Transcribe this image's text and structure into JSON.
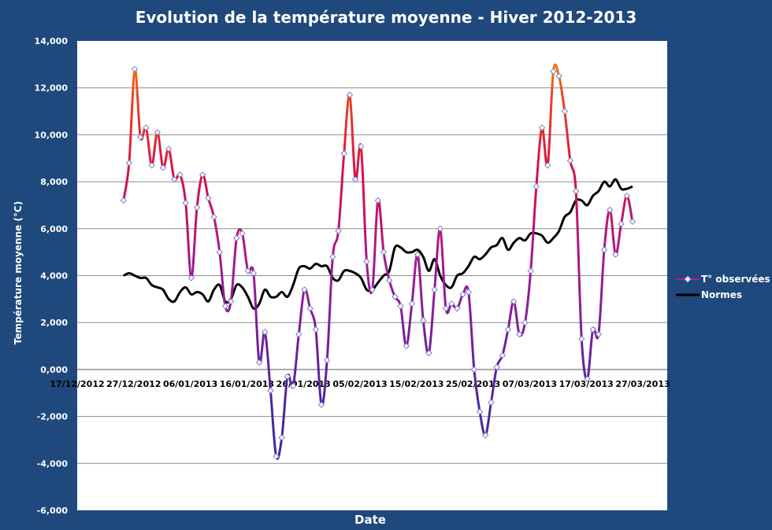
{
  "chart_data": {
    "type": "line",
    "title": "Evolution de la température moyenne - Hiver 2012-2013",
    "xlabel": "Date",
    "ylabel": "Température moyenne (°C)",
    "ylim": [
      -6,
      14
    ],
    "yticks": [
      -6,
      -4,
      -2,
      0,
      2,
      4,
      6,
      8,
      10,
      12,
      14
    ],
    "ytick_labels": [
      "-6,000",
      "-4,000",
      "-2,000",
      "0,000",
      "2,000",
      "4,000",
      "6,000",
      "8,000",
      "10,000",
      "12,000",
      "14,000"
    ],
    "xlim": [
      "2012-12-17",
      "2013-03-27"
    ],
    "xtick_labels": [
      "17/12/2012",
      "27/12/2012",
      "06/01/2013",
      "16/01/2013",
      "26/01/2013",
      "05/02/2013",
      "15/02/2013",
      "25/02/2013",
      "07/03/2013",
      "17/03/2013",
      "27/03/2013"
    ],
    "x_start": "2012-12-21",
    "grid": "horizontal",
    "legend_position": "right",
    "series": [
      {
        "name": "T° observées",
        "color": "#8B1A9E",
        "values": [
          7.2,
          8.8,
          12.8,
          9.9,
          10.3,
          8.7,
          10.1,
          8.6,
          9.4,
          8.1,
          8.3,
          7.1,
          3.9,
          6.9,
          8.3,
          7.3,
          6.5,
          5.0,
          2.7,
          2.9,
          5.6,
          5.8,
          4.2,
          4.1,
          0.3,
          1.6,
          -0.9,
          -3.7,
          -2.9,
          -0.3,
          -0.7,
          1.5,
          3.4,
          2.6,
          1.7,
          -1.5,
          0.4,
          4.8,
          5.9,
          9.2,
          11.7,
          8.1,
          9.5,
          4.6,
          3.4,
          7.2,
          5.0,
          3.8,
          3.1,
          2.7,
          1.0,
          2.8,
          4.9,
          2.1,
          0.7,
          3.4,
          6.0,
          2.6,
          2.8,
          2.6,
          3.2,
          3.3,
          0.0,
          -1.8,
          -2.8,
          -1.4,
          0.1,
          0.6,
          1.7,
          2.9,
          1.5,
          2.0,
          4.2,
          7.8,
          10.3,
          8.7,
          12.7,
          12.5,
          11.0,
          8.9,
          7.6,
          1.3,
          -0.4,
          1.7,
          1.5,
          5.1,
          6.8,
          4.9,
          6.2,
          7.4,
          6.3
        ]
      },
      {
        "name": "Normes",
        "color": "#000000",
        "values": [
          4.0,
          4.1,
          4.0,
          3.9,
          3.9,
          3.6,
          3.5,
          3.4,
          3.0,
          2.9,
          3.3,
          3.5,
          3.2,
          3.3,
          3.2,
          2.9,
          3.4,
          3.6,
          2.9,
          3.0,
          3.6,
          3.5,
          3.1,
          2.6,
          2.8,
          3.4,
          3.1,
          3.1,
          3.3,
          3.1,
          3.6,
          4.3,
          4.4,
          4.3,
          4.5,
          4.4,
          4.4,
          3.9,
          3.8,
          4.2,
          4.2,
          4.1,
          3.9,
          3.4,
          3.4,
          3.7,
          4.0,
          4.2,
          5.2,
          5.2,
          5.0,
          5.0,
          5.1,
          4.8,
          4.2,
          4.7,
          4.0,
          3.6,
          3.5,
          4.0,
          4.1,
          4.4,
          4.8,
          4.7,
          4.9,
          5.2,
          5.3,
          5.6,
          5.1,
          5.4,
          5.6,
          5.5,
          5.8,
          5.8,
          5.7,
          5.4,
          5.6,
          5.9,
          6.5,
          6.7,
          7.2,
          7.2,
          7.0,
          7.4,
          7.6,
          8.0,
          7.8,
          8.1,
          7.7,
          7.7,
          7.8
        ]
      }
    ]
  }
}
